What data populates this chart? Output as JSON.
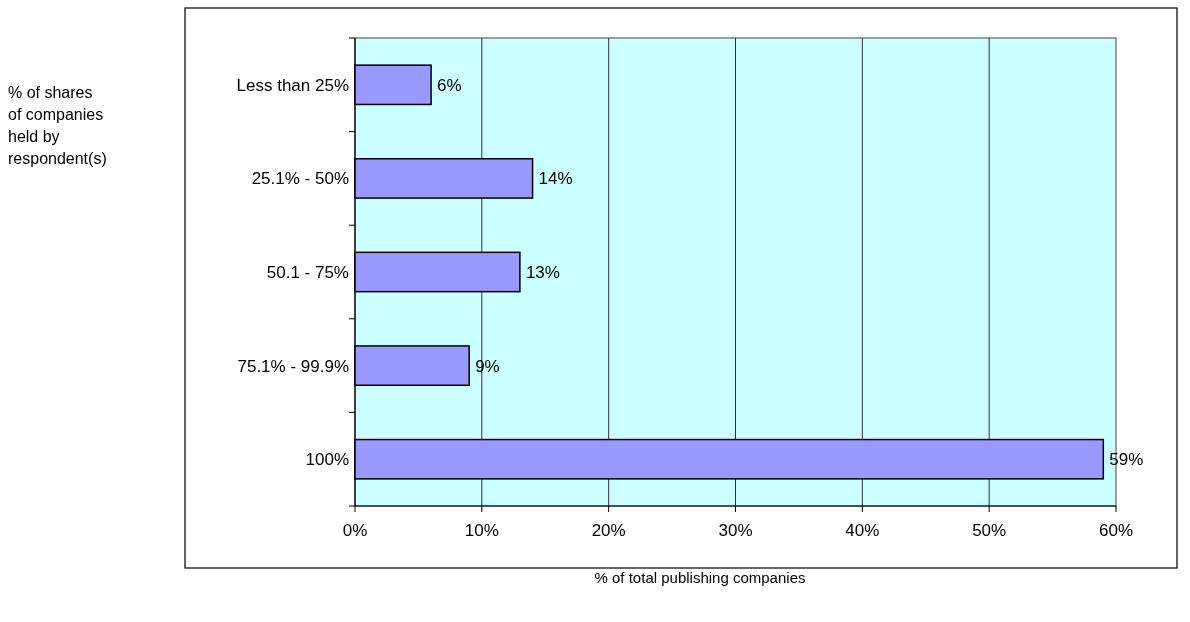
{
  "chart_data": {
    "type": "bar",
    "orientation": "horizontal",
    "annotations": [
      "% of shares of companies held by respondent(s)"
    ],
    "xlabel": "% of total publishing companies",
    "categories": [
      "Less than 25%",
      "25.1% - 50%",
      "50.1 - 75%",
      "75.1% - 99.9%",
      "100%"
    ],
    "values": [
      6,
      14,
      13,
      9,
      59
    ],
    "value_labels": [
      "6%",
      "14%",
      "13%",
      "9%",
      "59%"
    ],
    "color": "#9999ff",
    "xlim": [
      0,
      60
    ],
    "xticks": [
      {
        "value": 0,
        "label": "0%"
      },
      {
        "value": 10,
        "label": "10%"
      },
      {
        "value": 20,
        "label": "20%"
      },
      {
        "value": 30,
        "label": "30%"
      },
      {
        "value": 40,
        "label": "40%"
      },
      {
        "value": 50,
        "label": "50%"
      },
      {
        "value": 60,
        "label": "60%"
      }
    ],
    "grid": "x"
  }
}
